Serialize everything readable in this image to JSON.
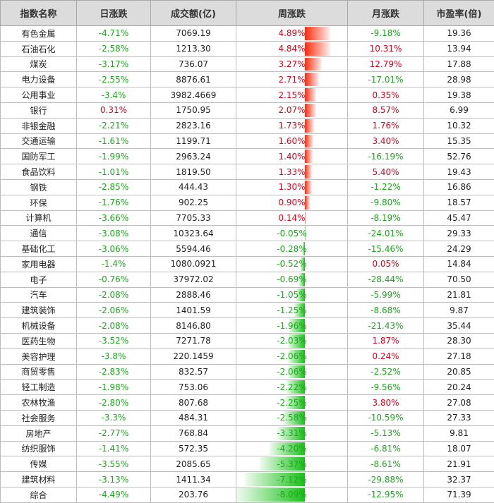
{
  "headers": [
    "指数名称",
    "日涨跌",
    "成交额(亿)",
    "周涨跌",
    "月涨跌",
    "市盈率(倍)"
  ],
  "colors": {
    "up": "#e1001a",
    "down": "#1aaa1a",
    "bar_up": "#ff2a0a",
    "bar_down": "#19c019"
  },
  "rows": [
    {
      "name": "有色金属",
      "daily": "-4.71%",
      "turnover": "7069.19",
      "weekly": "4.89%",
      "weekly_value": 4.89,
      "monthly": "-9.18%",
      "pe": "19.36"
    },
    {
      "name": "石油石化",
      "daily": "-2.58%",
      "turnover": "1213.30",
      "weekly": "4.84%",
      "weekly_value": 4.84,
      "monthly": "10.31%",
      "pe": "13.94"
    },
    {
      "name": "煤炭",
      "daily": "-3.17%",
      "turnover": "736.07",
      "weekly": "3.27%",
      "weekly_value": 3.27,
      "monthly": "12.79%",
      "pe": "17.88"
    },
    {
      "name": "电力设备",
      "daily": "-2.55%",
      "turnover": "8876.61",
      "weekly": "2.71%",
      "weekly_value": 2.71,
      "monthly": "-17.01%",
      "pe": "28.98"
    },
    {
      "name": "公用事业",
      "daily": "-3.4%",
      "turnover": "3982.4669",
      "weekly": "2.15%",
      "weekly_value": 2.15,
      "monthly": "0.35%",
      "pe": "19.38"
    },
    {
      "name": "银行",
      "daily": "0.31%",
      "turnover": "1750.95",
      "weekly": "2.07%",
      "weekly_value": 2.07,
      "monthly": "8.57%",
      "pe": "6.99"
    },
    {
      "name": "非银金融",
      "daily": "-2.21%",
      "turnover": "2823.16",
      "weekly": "1.73%",
      "weekly_value": 1.73,
      "monthly": "1.76%",
      "pe": "10.32"
    },
    {
      "name": "交通运输",
      "daily": "-1.61%",
      "turnover": "1199.71",
      "weekly": "1.60%",
      "weekly_value": 1.6,
      "monthly": "3.40%",
      "pe": "15.35"
    },
    {
      "name": "国防军工",
      "daily": "-1.99%",
      "turnover": "2963.24",
      "weekly": "1.40%",
      "weekly_value": 1.4,
      "monthly": "-16.19%",
      "pe": "52.76"
    },
    {
      "name": "食品饮料",
      "daily": "-1.01%",
      "turnover": "1819.50",
      "weekly": "1.33%",
      "weekly_value": 1.33,
      "monthly": "5.40%",
      "pe": "19.43"
    },
    {
      "name": "钢铁",
      "daily": "-2.85%",
      "turnover": "444.43",
      "weekly": "1.30%",
      "weekly_value": 1.3,
      "monthly": "-1.22%",
      "pe": "16.86"
    },
    {
      "name": "环保",
      "daily": "-1.76%",
      "turnover": "902.25",
      "weekly": "0.90%",
      "weekly_value": 0.9,
      "monthly": "-9.80%",
      "pe": "18.57"
    },
    {
      "name": "计算机",
      "daily": "-3.66%",
      "turnover": "7705.33",
      "weekly": "0.14%",
      "weekly_value": 0.14,
      "monthly": "-8.19%",
      "pe": "45.47"
    },
    {
      "name": "通信",
      "daily": "-3.08%",
      "turnover": "10323.64",
      "weekly": "-0.05%",
      "weekly_value": -0.05,
      "monthly": "-24.01%",
      "pe": "29.33"
    },
    {
      "name": "基础化工",
      "daily": "-3.06%",
      "turnover": "5594.46",
      "weekly": "-0.28%",
      "weekly_value": -0.28,
      "monthly": "-15.46%",
      "pe": "24.29"
    },
    {
      "name": "家用电器",
      "daily": "-1.4%",
      "turnover": "1080.0921",
      "weekly": "-0.52%",
      "weekly_value": -0.52,
      "monthly": "0.05%",
      "pe": "14.84"
    },
    {
      "name": "电子",
      "daily": "-0.76%",
      "turnover": "37972.02",
      "weekly": "-0.69%",
      "weekly_value": -0.69,
      "monthly": "-28.44%",
      "pe": "70.50"
    },
    {
      "name": "汽车",
      "daily": "-2.08%",
      "turnover": "2888.46",
      "weekly": "-1.05%",
      "weekly_value": -1.05,
      "monthly": "-5.99%",
      "pe": "21.81"
    },
    {
      "name": "建筑装饰",
      "daily": "-2.06%",
      "turnover": "1401.59",
      "weekly": "-1.25%",
      "weekly_value": -1.25,
      "monthly": "-8.68%",
      "pe": "9.87"
    },
    {
      "name": "机械设备",
      "daily": "-2.08%",
      "turnover": "8146.80",
      "weekly": "-1.96%",
      "weekly_value": -1.96,
      "monthly": "-21.43%",
      "pe": "35.44"
    },
    {
      "name": "医药生物",
      "daily": "-3.52%",
      "turnover": "7271.78",
      "weekly": "-2.03%",
      "weekly_value": -2.03,
      "monthly": "1.87%",
      "pe": "28.30"
    },
    {
      "name": "美容护理",
      "daily": "-3.8%",
      "turnover": "220.1459",
      "weekly": "-2.06%",
      "weekly_value": -2.06,
      "monthly": "0.24%",
      "pe": "27.18"
    },
    {
      "name": "商贸零售",
      "daily": "-2.83%",
      "turnover": "832.57",
      "weekly": "-2.06%",
      "weekly_value": -2.06,
      "monthly": "-2.52%",
      "pe": "20.85"
    },
    {
      "name": "轻工制造",
      "daily": "-1.98%",
      "turnover": "753.06",
      "weekly": "-2.22%",
      "weekly_value": -2.22,
      "monthly": "-9.56%",
      "pe": "20.24"
    },
    {
      "name": "农林牧渔",
      "daily": "-2.80%",
      "turnover": "807.68",
      "weekly": "-2.25%",
      "weekly_value": -2.25,
      "monthly": "3.80%",
      "pe": "27.08"
    },
    {
      "name": "社会服务",
      "daily": "-3.3%",
      "turnover": "484.31",
      "weekly": "-2.58%",
      "weekly_value": -2.58,
      "monthly": "-10.59%",
      "pe": "27.33"
    },
    {
      "name": "房地产",
      "daily": "-2.77%",
      "turnover": "768.84",
      "weekly": "-3.31%",
      "weekly_value": -3.31,
      "monthly": "-5.13%",
      "pe": "9.81"
    },
    {
      "name": "纺织服饰",
      "daily": "-1.41%",
      "turnover": "572.35",
      "weekly": "-4.20%",
      "weekly_value": -4.2,
      "monthly": "-6.81%",
      "pe": "18.07"
    },
    {
      "name": "传媒",
      "daily": "-3.55%",
      "turnover": "2085.65",
      "weekly": "-5.37%",
      "weekly_value": -5.37,
      "monthly": "-8.61%",
      "pe": "21.91"
    },
    {
      "name": "建筑材料",
      "daily": "-3.13%",
      "turnover": "1411.34",
      "weekly": "-7.12%",
      "weekly_value": -7.12,
      "monthly": "-29.88%",
      "pe": "32.37"
    },
    {
      "name": "综合",
      "daily": "-4.49%",
      "turnover": "203.76",
      "weekly": "-8.09%",
      "weekly_value": -8.09,
      "monthly": "-12.95%",
      "pe": "71.39"
    }
  ]
}
